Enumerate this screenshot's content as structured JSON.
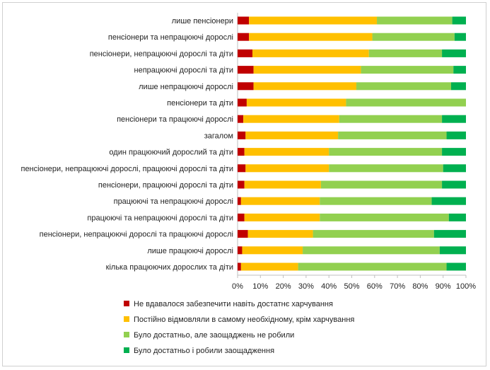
{
  "chart_data": {
    "type": "bar",
    "orientation": "horizontal",
    "stacked": "percent",
    "categories": [
      "лише пенсіонери",
      "пенсіонери та непрацюючі дорослі",
      "пенсіонери, непрацюючі дорослі та діти",
      "непрацюючі дорослі та діти",
      "лише непрацюючі дорослі",
      "пенсіонери та діти",
      "пенсіонери та працюючі дорослі",
      "загалом",
      "один працюючий дорослий та діти",
      "пенсіонери, непрацюючі дорослі, працюючі дорослі та діти",
      "пенсіонери, працюючі дорослі та діти",
      "працюючі та непрацюючі дорослі",
      "працюючі та непрацюючі дорослі та діти",
      "пенсіонери, непрацюючі дорослі та працюючі дорослі",
      "лише працюючі дорослі",
      "кілька працюючих дорослих та діти"
    ],
    "series": [
      {
        "name": "Не вдавалося забезпечити навіть достатнє харчування",
        "color": "#c00000",
        "values": [
          5,
          5,
          6.5,
          7,
          7,
          4,
          2.5,
          3.5,
          3,
          3.5,
          3,
          1.5,
          3,
          4.5,
          2,
          1.5
        ]
      },
      {
        "name": "Постійно відмовляли в самому необхідному, крім харчування",
        "color": "#ffc000",
        "values": [
          56,
          54,
          51,
          47,
          45,
          43.5,
          42,
          40.5,
          37,
          36.5,
          33.5,
          34.5,
          33,
          28.5,
          26.5,
          25
        ]
      },
      {
        "name": "Було достатньо, але заощаджень не робили",
        "color": "#92d050",
        "values": [
          33,
          36,
          32,
          40.5,
          41.5,
          52.5,
          45,
          47.5,
          49.5,
          50,
          53,
          49,
          56.5,
          53,
          60,
          65
        ]
      },
      {
        "name": "Було достатньо і робили заощадження",
        "color": "#00b050",
        "values": [
          6,
          5,
          10.5,
          5.5,
          6.5,
          0,
          10.5,
          8.5,
          10.5,
          10,
          10.5,
          15,
          7.5,
          14,
          11.5,
          8.5
        ]
      }
    ],
    "x_ticks": [
      "0%",
      "10%",
      "20%",
      "30%",
      "40%",
      "50%",
      "60%",
      "70%",
      "80%",
      "90%",
      "100%"
    ],
    "xlim": [
      0,
      100
    ],
    "grid": false,
    "legend_position": "bottom"
  }
}
